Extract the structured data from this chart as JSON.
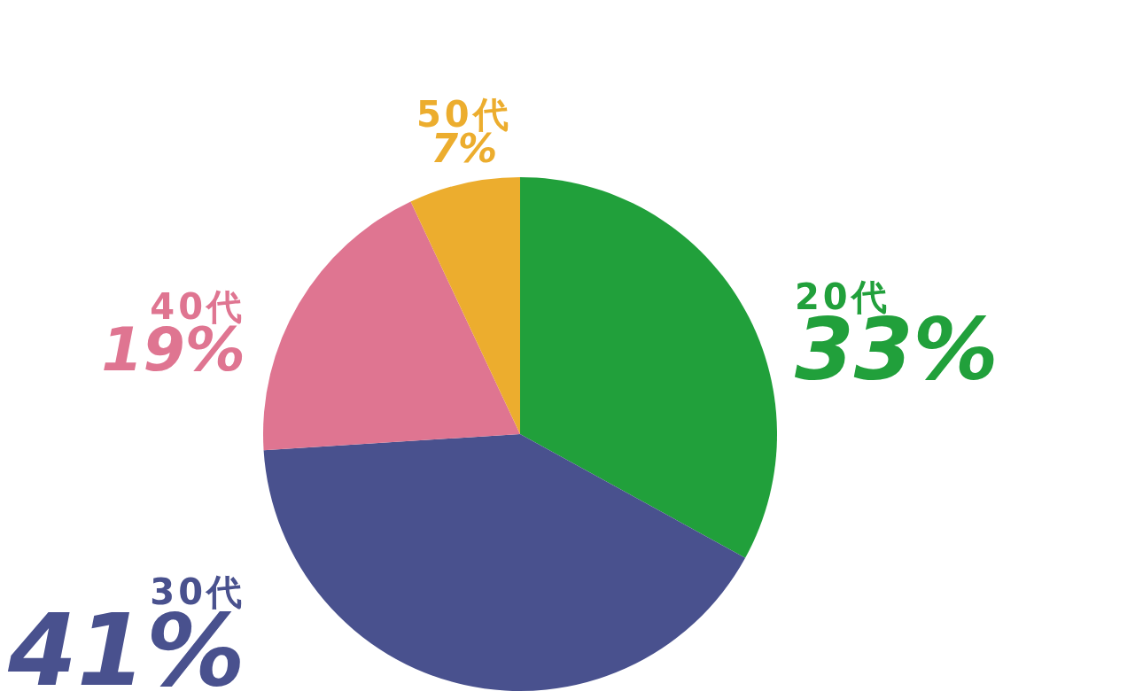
{
  "chart_data": {
    "type": "pie",
    "categories": [
      "20代",
      "30代",
      "40代",
      "50代"
    ],
    "values": [
      33,
      41,
      19,
      7
    ],
    "value_labels": [
      "33%",
      "41%",
      "19%",
      "7%"
    ],
    "colors": [
      "#21a03b",
      "#49518e",
      "#df7591",
      "#ecad2e"
    ]
  }
}
